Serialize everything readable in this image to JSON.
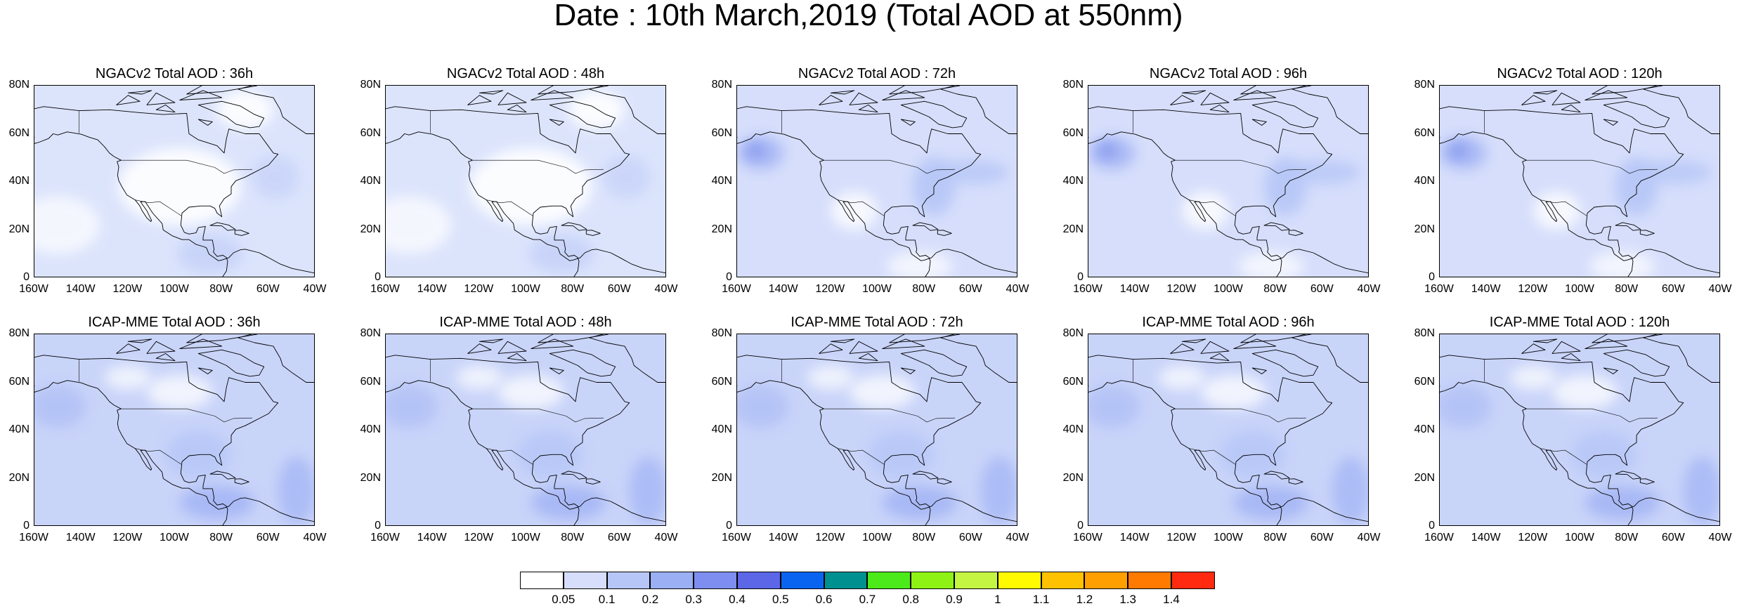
{
  "title": "Date : 10th March,2019 (Total AOD at 550nm)",
  "panels": [
    {
      "title": "NGACv2 Total AOD : 36h",
      "model": "NGACv2",
      "forecast_hour": "36h",
      "fill": 0
    },
    {
      "title": "NGACv2 Total AOD : 48h",
      "model": "NGACv2",
      "forecast_hour": "48h",
      "fill": 0
    },
    {
      "title": "NGACv2 Total AOD : 72h",
      "model": "NGACv2",
      "forecast_hour": "72h",
      "fill": 1
    },
    {
      "title": "NGACv2 Total AOD : 96h",
      "model": "NGACv2",
      "forecast_hour": "96h",
      "fill": 1
    },
    {
      "title": "NGACv2 Total AOD : 120h",
      "model": "NGACv2",
      "forecast_hour": "120h",
      "fill": 1
    },
    {
      "title": "ICAP-MME Total AOD : 36h",
      "model": "ICAP-MME",
      "forecast_hour": "36h",
      "fill": 2
    },
    {
      "title": "ICAP-MME Total AOD : 48h",
      "model": "ICAP-MME",
      "forecast_hour": "48h",
      "fill": 2
    },
    {
      "title": "ICAP-MME Total AOD : 72h",
      "model": "ICAP-MME",
      "forecast_hour": "72h",
      "fill": 2
    },
    {
      "title": "ICAP-MME Total AOD : 96h",
      "model": "ICAP-MME",
      "forecast_hour": "96h",
      "fill": 2
    },
    {
      "title": "ICAP-MME Total AOD : 120h",
      "model": "ICAP-MME",
      "forecast_hour": "120h",
      "fill": 2
    }
  ],
  "y_ticks": [
    "80N",
    "60N",
    "40N",
    "20N",
    "0"
  ],
  "x_ticks": [
    "160W",
    "140W",
    "120W",
    "100W",
    "80W",
    "60W",
    "40W"
  ],
  "extent": {
    "lon": [
      -160,
      -40
    ],
    "lat": [
      0,
      80
    ]
  },
  "colorbar": {
    "labels": [
      "0.05",
      "0.1",
      "0.2",
      "0.3",
      "0.4",
      "0.5",
      "0.6",
      "0.7",
      "0.8",
      "0.9",
      "1",
      "1.1",
      "1.2",
      "1.3",
      "1.4"
    ],
    "colors": [
      "#ffffff",
      "#d6defb",
      "#b6c6f7",
      "#9aaff4",
      "#7e8ef0",
      "#5b67e6",
      "#0a64f0",
      "#009090",
      "#4cea1a",
      "#8ef314",
      "#c4f542",
      "#fffa00",
      "#ffc200",
      "#ff9f00",
      "#ff7a00",
      "#ff2a10"
    ]
  }
}
